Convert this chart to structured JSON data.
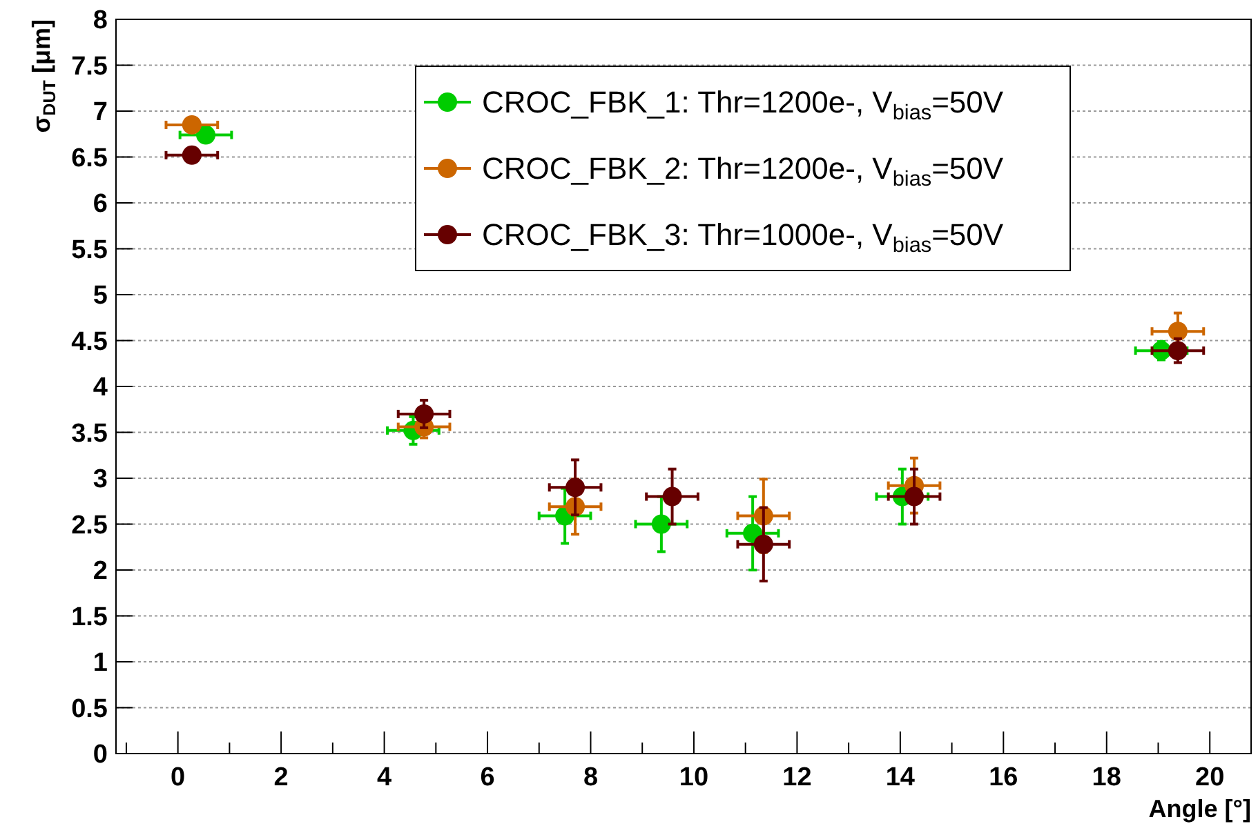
{
  "chart_data": {
    "type": "scatter",
    "xlabel": "Angle [°]",
    "ylabel": "σ$_{DUT}$ [μm]",
    "xlim": [
      -1.2,
      20.8
    ],
    "ylim": [
      0,
      8
    ],
    "xticks": [
      {
        "value": -1,
        "label": null
      },
      0,
      {
        "value": 1,
        "label": null
      },
      2,
      {
        "value": 3,
        "label": null
      },
      4,
      {
        "value": 5,
        "label": null
      },
      6,
      {
        "value": 7,
        "label": null
      },
      8,
      {
        "value": 9,
        "label": null
      },
      10,
      {
        "value": 11,
        "label": null
      },
      12,
      {
        "value": 13,
        "label": null
      },
      14,
      {
        "value": 15,
        "label": null
      },
      16,
      {
        "value": 17,
        "label": null
      },
      18,
      {
        "value": 19,
        "label": null
      },
      20
    ],
    "yticks": [
      0,
      0.5,
      1,
      1.5,
      2,
      2.5,
      3,
      3.5,
      4,
      4.5,
      5,
      5.5,
      6,
      6.5,
      7,
      7.5,
      8
    ],
    "grid": "y",
    "legend": "top",
    "marker": "circle",
    "series": [
      {
        "name": "CROC_FBK_1: Thr=1200e-, V$_{bias}$=50V",
        "color": "#00cc00",
        "x": [
          0.54,
          4.56,
          7.5,
          9.37,
          11.14,
          14.04,
          19.06
        ],
        "values": [
          6.74,
          3.52,
          2.59,
          2.5,
          2.4,
          2.8,
          4.39
        ],
        "errors": [
          0.05,
          0.15,
          0.3,
          0.3,
          0.4,
          0.3,
          0.1
        ],
        "xerrors": [
          0.5,
          0.5,
          0.5,
          0.5,
          0.5,
          0.5,
          0.5
        ]
      },
      {
        "name": "CROC_FBK_2: Thr=1200e-, V$_{bias}$=50V",
        "color": "#cc6600",
        "x": [
          0.27,
          4.77,
          7.7,
          11.35,
          14.27,
          19.38
        ],
        "values": [
          6.85,
          3.56,
          2.69,
          2.59,
          2.92,
          4.6
        ],
        "errors": [
          0.05,
          0.12,
          0.3,
          0.4,
          0.3,
          0.2
        ],
        "xerrors": [
          0.5,
          0.5,
          0.5,
          0.5,
          0.5,
          0.5
        ]
      },
      {
        "name": "CROC_FBK_3: Thr=1000e-, V$_{bias}$=50V",
        "color": "#660000",
        "x": [
          0.27,
          4.77,
          7.7,
          9.58,
          11.35,
          14.27,
          19.38
        ],
        "values": [
          6.52,
          3.7,
          2.9,
          2.8,
          2.28,
          2.8,
          4.39
        ],
        "errors": [
          0.05,
          0.15,
          0.3,
          0.3,
          0.4,
          0.3,
          0.13
        ],
        "xerrors": [
          0.5,
          0.5,
          0.5,
          0.5,
          0.5,
          0.5,
          0.5
        ]
      }
    ]
  }
}
